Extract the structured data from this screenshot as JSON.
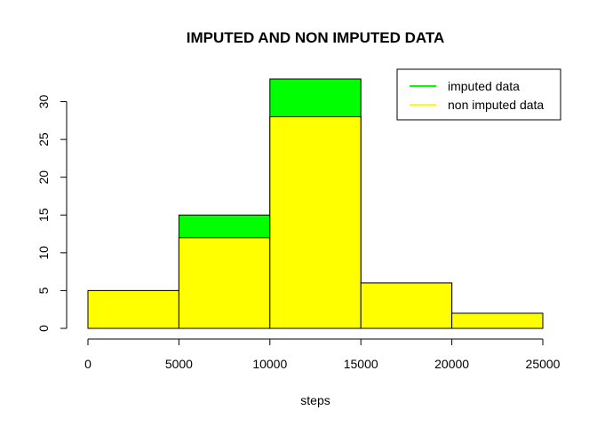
{
  "chart_data": {
    "type": "bar",
    "title": "IMPUTED AND NON IMPUTED DATA",
    "xlabel": "steps",
    "ylabel": "",
    "bins": [
      [
        0,
        5000
      ],
      [
        5000,
        10000
      ],
      [
        10000,
        15000
      ],
      [
        15000,
        20000
      ],
      [
        20000,
        25000
      ]
    ],
    "series": [
      {
        "name": "imputed data",
        "color": "#00ff00",
        "values": [
          5,
          15,
          33,
          6,
          2
        ]
      },
      {
        "name": "non imputed data",
        "color": "#ffff00",
        "values": [
          5,
          12,
          28,
          6,
          2
        ]
      }
    ],
    "xlim": [
      0,
      25000
    ],
    "ylim": [
      0,
      33
    ],
    "x_ticks": [
      "0",
      "5000",
      "10000",
      "15000",
      "20000",
      "25000"
    ],
    "y_ticks": [
      "0",
      "5",
      "10",
      "15",
      "20",
      "25",
      "30"
    ],
    "grid": false,
    "legend_position": "top-right"
  }
}
